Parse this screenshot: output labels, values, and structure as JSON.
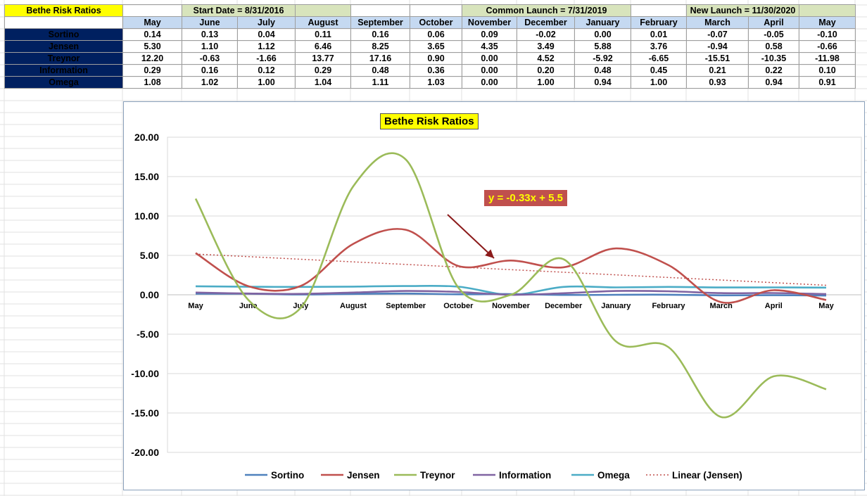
{
  "sheet": {
    "title": "Bethe Risk Ratios",
    "notes": [
      {
        "text": "Start Date = 8/31/2016",
        "start_col": 1,
        "span": 2
      },
      {
        "text": "Common Launch = 7/31/2019",
        "start_col": 6,
        "span": 3
      },
      {
        "text": "New Launch = 11/30/2020",
        "start_col": 10,
        "span": 2
      }
    ],
    "green_cells": [
      1,
      2,
      3,
      6,
      7,
      8,
      10,
      11,
      12
    ],
    "months": [
      "May",
      "June",
      "July",
      "August",
      "September",
      "October",
      "November",
      "December",
      "January",
      "February",
      "March",
      "April",
      "May"
    ],
    "rows": [
      {
        "label": "Sortino",
        "values": [
          "0.14",
          "0.13",
          "0.04",
          "0.11",
          "0.16",
          "0.06",
          "0.09",
          "-0.02",
          "0.00",
          "0.01",
          "-0.07",
          "-0.05",
          "-0.10"
        ]
      },
      {
        "label": "Jensen",
        "values": [
          "5.30",
          "1.10",
          "1.12",
          "6.46",
          "8.25",
          "3.65",
          "4.35",
          "3.49",
          "5.88",
          "3.76",
          "-0.94",
          "0.58",
          "-0.66"
        ]
      },
      {
        "label": "Treynor",
        "values": [
          "12.20",
          "-0.63",
          "-1.66",
          "13.77",
          "17.16",
          "0.90",
          "0.00",
          "4.52",
          "-5.92",
          "-6.65",
          "-15.51",
          "-10.35",
          "-11.98"
        ]
      },
      {
        "label": "Information",
        "values": [
          "0.29",
          "0.16",
          "0.12",
          "0.29",
          "0.48",
          "0.36",
          "0.00",
          "0.20",
          "0.48",
          "0.45",
          "0.21",
          "0.22",
          "0.10"
        ]
      },
      {
        "label": "Omega",
        "values": [
          "1.08",
          "1.02",
          "1.00",
          "1.04",
          "1.11",
          "1.03",
          "0.00",
          "1.00",
          "0.94",
          "1.00",
          "0.93",
          "0.94",
          "0.91"
        ]
      }
    ]
  },
  "chart_data": {
    "type": "line",
    "title": "Bethe Risk Ratios",
    "categories": [
      "May",
      "June",
      "July",
      "August",
      "September",
      "October",
      "November",
      "December",
      "January",
      "February",
      "March",
      "April",
      "May"
    ],
    "ylim": [
      -20,
      20
    ],
    "yticks": [
      20,
      15,
      10,
      5,
      0,
      -5,
      -10,
      -15,
      -20
    ],
    "ytick_labels": [
      "20.00",
      "15.00",
      "10.00",
      "5.00",
      "0.00",
      "-5.00",
      "-10.00",
      "-15.00",
      "-20.00"
    ],
    "grid": true,
    "legend_position": "bottom",
    "series": [
      {
        "name": "Sortino",
        "color": "#4f81bd",
        "values": [
          0.14,
          0.13,
          0.04,
          0.11,
          0.16,
          0.06,
          0.09,
          -0.02,
          0.0,
          0.01,
          -0.07,
          -0.05,
          -0.1
        ]
      },
      {
        "name": "Jensen",
        "color": "#c0504d",
        "values": [
          5.3,
          1.1,
          1.12,
          6.46,
          8.25,
          3.65,
          4.35,
          3.49,
          5.88,
          3.76,
          -0.94,
          0.58,
          -0.66
        ]
      },
      {
        "name": "Treynor",
        "color": "#9bbb59",
        "values": [
          12.2,
          -0.63,
          -1.66,
          13.77,
          17.16,
          0.9,
          0.0,
          4.52,
          -5.92,
          -6.65,
          -15.51,
          -10.35,
          -11.98
        ]
      },
      {
        "name": "Information",
        "color": "#8064a2",
        "values": [
          0.29,
          0.16,
          0.12,
          0.29,
          0.48,
          0.36,
          0.0,
          0.2,
          0.48,
          0.45,
          0.21,
          0.22,
          0.1
        ]
      },
      {
        "name": "Omega",
        "color": "#4bacc6",
        "values": [
          1.08,
          1.02,
          1.0,
          1.04,
          1.11,
          1.03,
          0.0,
          1.0,
          0.94,
          1.0,
          0.93,
          0.94,
          0.91
        ]
      }
    ],
    "trendline": {
      "name": "Linear (Jensen)",
      "color": "#c0504d",
      "style": "dotted",
      "slope": -0.33,
      "intercept": 5.5
    },
    "annotation": {
      "text": "y = -0.33x + 5.5",
      "arrow_color": "#8b1a1a"
    }
  }
}
